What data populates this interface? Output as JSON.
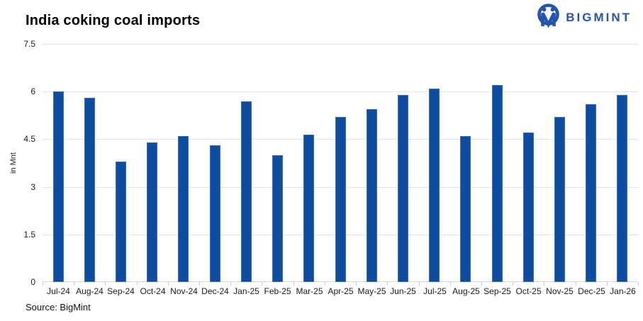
{
  "header": {
    "title": "India coking coal imports",
    "brand": "BIGMINT"
  },
  "footer": {
    "source": "Source: BigMint"
  },
  "colors": {
    "bar": "#0c4da2",
    "bar_border": "#3d6fb4",
    "brand_blue": "#2456ae",
    "gridline": "#e4e4e4",
    "axis_line": "#d6d6d6",
    "tick": "#c9c9c9"
  },
  "chart_data": {
    "type": "bar",
    "title": "India coking coal imports",
    "xlabel": "",
    "ylabel": "in Mnt",
    "ylim": [
      0,
      7.5
    ],
    "yticks": [
      0,
      1.5,
      3,
      4.5,
      6,
      7.5
    ],
    "grid": true,
    "legend": false,
    "categories": [
      "Jul-24",
      "Aug-24",
      "Sep-24",
      "Oct-24",
      "Nov-24",
      "Dec-24",
      "Jan-25",
      "Feb-25",
      "Mar-25",
      "Apr-25",
      "May-25",
      "Jun-25",
      "Jul-25",
      "Aug-25",
      "Sep-25",
      "Oct-25",
      "Nov-25",
      "Dec-25",
      "Jan-26"
    ],
    "values": [
      6.0,
      5.8,
      3.8,
      4.4,
      4.6,
      4.3,
      5.7,
      4.0,
      4.65,
      5.2,
      5.45,
      5.9,
      6.1,
      4.6,
      6.2,
      4.7,
      5.2,
      5.6,
      5.9
    ]
  }
}
